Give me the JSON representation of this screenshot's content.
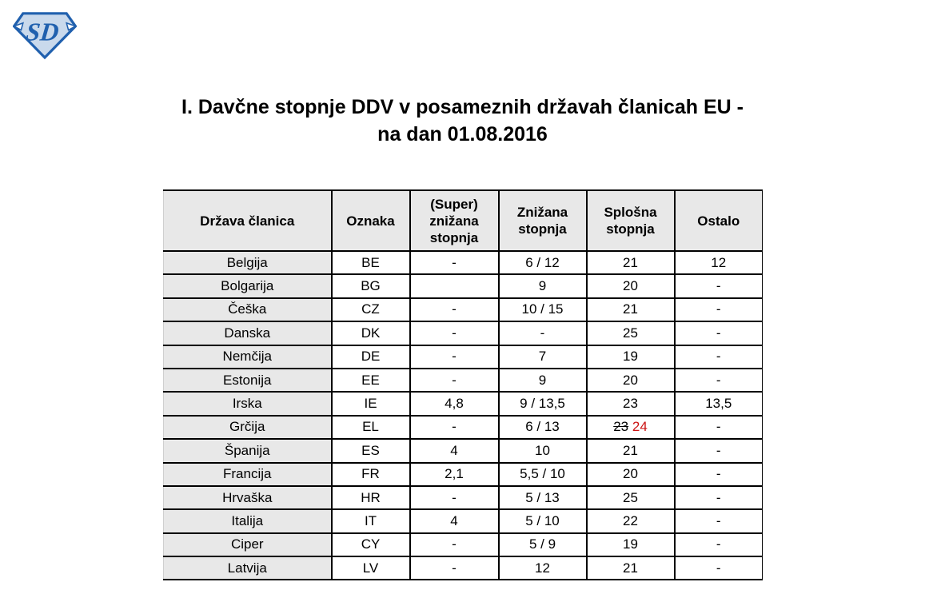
{
  "title": {
    "line1": "I. Davčne stopnje DDV v posameznih državah članicah EU -",
    "line2": "na dan 01.08.2016"
  },
  "logo": {
    "initials": "SD"
  },
  "colors": {
    "table_header_bg": "#e8e8e8",
    "first_column_bg": "#e8e8e8",
    "updated_value_red": "#cc1414",
    "logo_stroke_blue": "#2060ae",
    "logo_fill_blue": "#c9d9ec"
  },
  "table": {
    "headers": [
      "Država članica",
      "Oznaka",
      "(Super) znižana stopnja",
      "Znižana stopnja",
      "Splošna stopnja",
      "Ostalo"
    ],
    "rows": [
      {
        "cells": [
          "Belgija",
          "BE",
          "-",
          "6 / 12",
          "21",
          "12"
        ]
      },
      {
        "cells": [
          "Bolgarija",
          "BG",
          "",
          "9",
          "20",
          "-"
        ]
      },
      {
        "cells": [
          "Češka",
          "CZ",
          "-",
          "10 / 15",
          "21",
          "-"
        ]
      },
      {
        "cells": [
          "Danska",
          "DK",
          "-",
          "-",
          "25",
          "-"
        ]
      },
      {
        "cells": [
          "Nemčija",
          "DE",
          "-",
          "7",
          "19",
          "-"
        ]
      },
      {
        "cells": [
          "Estonija",
          "EE",
          "-",
          "9",
          "20",
          "-"
        ]
      },
      {
        "cells": [
          "Irska",
          "IE",
          "4,8",
          "9 / 13,5",
          "23",
          "13,5"
        ]
      },
      {
        "cells": [
          "Grčija",
          "EL",
          "-",
          "6 / 13",
          {
            "old": "23",
            "new": "24"
          },
          "-"
        ]
      },
      {
        "cells": [
          "Španija",
          "ES",
          "4",
          "10",
          "21",
          "-"
        ]
      },
      {
        "cells": [
          "Francija",
          "FR",
          "2,1",
          "5,5 / 10",
          "20",
          "-"
        ]
      },
      {
        "cells": [
          "Hrvaška",
          "HR",
          "-",
          "5 / 13",
          "25",
          "-"
        ]
      },
      {
        "cells": [
          "Italija",
          "IT",
          "4",
          "5 / 10",
          "22",
          "-"
        ]
      },
      {
        "cells": [
          "Ciper",
          "CY",
          "-",
          "5 / 9",
          "19",
          "-"
        ]
      },
      {
        "cells": [
          "Latvija",
          "LV",
          "-",
          "12",
          "21",
          "-"
        ]
      }
    ]
  }
}
